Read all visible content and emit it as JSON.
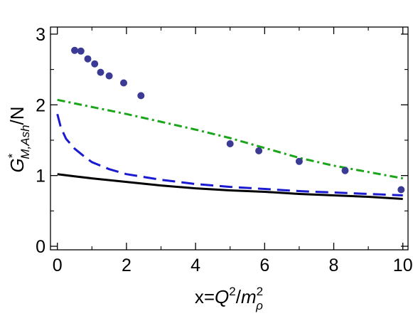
{
  "chart_data": {
    "type": "scatter",
    "xlabel": "x=Q²/m²ρ",
    "xlabel_parts": {
      "prefix": "x=",
      "q": "Q",
      "q_exp": "2",
      "slash": "/",
      "m": "m",
      "m_exp": "2",
      "m_sub": "ρ"
    },
    "ylabel": "G*M,Ash/N",
    "ylabel_parts": {
      "g": "G",
      "g_sup": "*",
      "g_sub": "M,Ash",
      "suffix": "/N"
    },
    "xlim": [
      -0.2,
      10.15
    ],
    "ylim": [
      -0.05,
      3.1
    ],
    "xticks": [
      0,
      2,
      4,
      6,
      8,
      10
    ],
    "yticks": [
      0,
      1,
      2,
      3
    ],
    "grid": false,
    "series": [
      {
        "kind": "points",
        "color": "#3b3b96",
        "x": [
          0.5,
          0.68,
          0.88,
          1.08,
          1.25,
          1.5,
          1.92,
          2.42,
          5.0,
          5.83,
          7.0,
          8.33,
          9.95
        ],
        "y": [
          2.77,
          2.76,
          2.65,
          2.58,
          2.46,
          2.41,
          2.31,
          2.13,
          1.45,
          1.35,
          1.2,
          1.07,
          0.8
        ]
      },
      {
        "kind": "line",
        "style": "dash-dot",
        "color": "#1aa51a",
        "x": [
          0,
          1,
          2,
          3,
          4,
          5,
          6,
          7,
          8,
          9,
          10
        ],
        "y": [
          2.07,
          1.97,
          1.87,
          1.76,
          1.65,
          1.53,
          1.39,
          1.25,
          1.14,
          1.05,
          0.96
        ]
      },
      {
        "kind": "line",
        "style": "dashed",
        "color": "#1a1ad0",
        "x": [
          0,
          0.1,
          0.25,
          0.5,
          0.75,
          1,
          1.5,
          2,
          3,
          4,
          5,
          6,
          7,
          8,
          9,
          10
        ],
        "y": [
          1.87,
          1.68,
          1.52,
          1.38,
          1.28,
          1.19,
          1.09,
          1.02,
          0.94,
          0.88,
          0.84,
          0.81,
          0.78,
          0.76,
          0.74,
          0.72
        ]
      },
      {
        "kind": "line",
        "style": "solid",
        "color": "#000000",
        "x": [
          0,
          0.5,
          1,
          2,
          3,
          4,
          5,
          6,
          7,
          8,
          9,
          10
        ],
        "y": [
          1.02,
          0.99,
          0.96,
          0.91,
          0.86,
          0.82,
          0.79,
          0.77,
          0.74,
          0.72,
          0.7,
          0.67
        ]
      }
    ]
  }
}
